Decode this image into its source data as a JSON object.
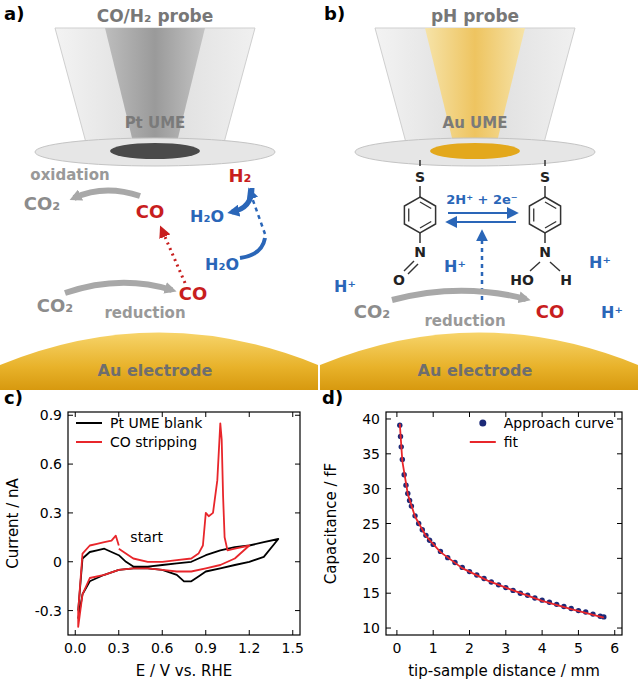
{
  "panels": [
    {
      "letter": "a)",
      "title": "CO/H₂ probe",
      "probe": "Pt UME",
      "electrode": "Au electrode",
      "labels": [
        "oxidation",
        "CO₂",
        "CO",
        "H₂O",
        "H₂",
        "CO₂",
        "reduction",
        "CO",
        "H₂O"
      ]
    },
    {
      "letter": "b)",
      "title": "pH probe",
      "probe": "Au UME",
      "electrode": "Au electrode",
      "labels": [
        "2H⁺ + 2e⁻",
        "H⁺",
        "H⁺",
        "H⁺",
        "CO₂",
        "reduction",
        "CO",
        "H⁺"
      ],
      "atoms": [
        "S",
        "S",
        "N",
        "O",
        "N",
        "HO",
        "H"
      ]
    },
    {
      "letter": "c)"
    },
    {
      "letter": "d)"
    }
  ],
  "chart_data": [
    {
      "type": "line",
      "x_label": "E / V vs. RHE",
      "y_label": "Current / nA",
      "xlim": [
        -0.05,
        1.55
      ],
      "ylim": [
        -0.45,
        0.92
      ],
      "xticks": [
        {
          "value": 0,
          "label": "0.0"
        },
        0.3,
        0.6,
        0.9,
        1.2,
        1.5
      ],
      "yticks": [
        -0.3,
        0,
        0.3,
        0.6,
        0.9
      ],
      "grid": false,
      "legend": "upper left",
      "series": [
        {
          "name": "Pt UME blank",
          "color": "#000000",
          "x": [
            0.02,
            0.05,
            0.1,
            0.15,
            0.2,
            0.25,
            0.3,
            0.35,
            0.4,
            0.5,
            0.6,
            0.7,
            0.8,
            0.9,
            1.0,
            1.1,
            1.2,
            1.3,
            1.4,
            1.4,
            1.3,
            1.2,
            1.1,
            1.0,
            0.9,
            0.85,
            0.8,
            0.75,
            0.7,
            0.6,
            0.5,
            0.4,
            0.3,
            0.2,
            0.15,
            0.1,
            0.05,
            0.02
          ],
          "values": [
            -0.3,
            0.02,
            0.06,
            0.07,
            0.08,
            0.06,
            0.04,
            0.0,
            -0.03,
            -0.03,
            -0.02,
            -0.01,
            0.0,
            0.04,
            0.07,
            0.09,
            0.1,
            0.12,
            0.14,
            0.14,
            0.03,
            0.0,
            -0.02,
            -0.04,
            -0.06,
            -0.09,
            -0.12,
            -0.12,
            -0.08,
            -0.05,
            -0.04,
            -0.04,
            -0.05,
            -0.08,
            -0.1,
            -0.12,
            -0.2,
            -0.35
          ]
        },
        {
          "name": "CO stripping",
          "color": "#e8262b",
          "x": [
            0.3,
            0.4,
            0.5,
            0.6,
            0.7,
            0.8,
            0.85,
            0.88,
            0.9,
            0.92,
            0.95,
            0.98,
            1.0,
            1.01,
            1.02,
            1.03,
            1.05,
            1.1,
            1.15,
            1.2,
            1.2,
            1.1,
            1.0,
            0.9,
            0.8,
            0.7,
            0.6,
            0.5,
            0.4,
            0.3,
            0.2,
            0.1,
            0.05,
            0.02,
            0.02,
            0.05,
            0.1,
            0.15,
            0.2,
            0.25,
            0.28,
            0.3
          ],
          "values": [
            0.08,
            0.02,
            0.0,
            0.0,
            0.01,
            0.02,
            0.05,
            0.1,
            0.3,
            0.28,
            0.3,
            0.5,
            0.85,
            0.75,
            0.4,
            0.15,
            0.07,
            0.08,
            0.09,
            0.1,
            0.1,
            0.02,
            -0.02,
            -0.04,
            -0.06,
            -0.06,
            -0.05,
            -0.04,
            -0.04,
            -0.05,
            -0.08,
            -0.1,
            -0.2,
            -0.4,
            -0.3,
            0.05,
            0.1,
            0.11,
            0.12,
            0.13,
            0.16,
            0.1
          ]
        }
      ],
      "annotations": [
        {
          "text": "start",
          "x": 0.38,
          "y": 0.12
        }
      ]
    },
    {
      "type": "scatter",
      "x_label": "tip-sample distance / mm",
      "y_label": "Capacitance / fF",
      "xlim": [
        -0.3,
        6.2
      ],
      "ylim": [
        9,
        41
      ],
      "xticks": [
        0,
        1,
        2,
        3,
        4,
        5,
        6
      ],
      "yticks": [
        10,
        15,
        20,
        25,
        30,
        35,
        40
      ],
      "grid": false,
      "legend": "upper right",
      "series": [
        {
          "name": "Approach curve",
          "color": "#1c2a78",
          "type": "scatter",
          "marker": "circle",
          "x": [
            0.08,
            0.1,
            0.12,
            0.15,
            0.2,
            0.25,
            0.3,
            0.35,
            0.4,
            0.5,
            0.6,
            0.7,
            0.8,
            0.9,
            1.0,
            1.2,
            1.4,
            1.6,
            1.8,
            2.0,
            2.2,
            2.4,
            2.6,
            2.8,
            3.0,
            3.2,
            3.4,
            3.6,
            3.8,
            4.0,
            4.2,
            4.4,
            4.6,
            4.8,
            5.0,
            5.2,
            5.4,
            5.6,
            5.7
          ],
          "values": [
            39.1,
            37.5,
            36.0,
            34.2,
            32.0,
            30.5,
            29.3,
            28.3,
            27.5,
            26.1,
            25.0,
            24.1,
            23.3,
            22.6,
            22.0,
            21.0,
            20.1,
            19.4,
            18.7,
            18.1,
            17.6,
            17.1,
            16.6,
            16.2,
            15.8,
            15.4,
            15.0,
            14.7,
            14.3,
            14.0,
            13.7,
            13.4,
            13.1,
            12.8,
            12.5,
            12.3,
            12.0,
            11.7,
            11.6
          ]
        },
        {
          "name": "fit",
          "color": "#e8262b",
          "type": "line",
          "line_style": "solid",
          "x": [
            0.08,
            0.15,
            0.3,
            0.5,
            0.8,
            1.2,
            1.8,
            2.5,
            3.2,
            4.0,
            4.8,
            5.7
          ],
          "values": [
            39.3,
            34.0,
            29.2,
            26.0,
            23.2,
            20.9,
            18.6,
            16.8,
            15.4,
            13.9,
            12.7,
            11.5
          ]
        }
      ]
    }
  ]
}
